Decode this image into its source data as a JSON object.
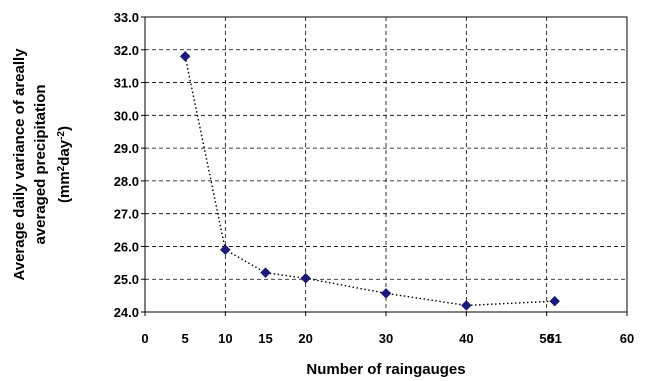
{
  "chart_data": {
    "type": "scatter",
    "xlabel": "Number of raingauges",
    "ylabel_lines": [
      "Average daily variance of areally",
      "averaged precipitation"
    ],
    "ylabel_unit": {
      "open": "(mm",
      "exp1": "2",
      "mid": "day",
      "exp2": "-2",
      "close": ")"
    },
    "xlim": [
      0,
      60
    ],
    "ylim": [
      24.0,
      33.0
    ],
    "x_ticks": [
      0,
      10,
      20,
      30,
      40,
      50,
      60
    ],
    "x_tick_labels": [
      "0",
      "10",
      "20",
      "30",
      "40",
      "50",
      "60"
    ],
    "y_ticks": [
      24.0,
      25.0,
      26.0,
      27.0,
      28.0,
      29.0,
      30.0,
      31.0,
      32.0,
      33.0
    ],
    "y_tick_labels": [
      "24.0",
      "25.0",
      "26.0",
      "27.0",
      "28.0",
      "29.0",
      "30.0",
      "31.0",
      "32.0",
      "33.0"
    ],
    "extra_x_labels": [
      {
        "x": 5,
        "text": "5"
      },
      {
        "x": 15,
        "text": "15"
      },
      {
        "x": 51,
        "text": "51"
      }
    ],
    "series": [
      {
        "x": [
          5,
          10,
          15,
          20,
          30,
          40,
          51
        ],
        "y": [
          31.8,
          25.9,
          25.2,
          25.03,
          24.57,
          24.2,
          24.33
        ],
        "marker": "diamond",
        "marker_color": "#1a1a7a",
        "line": "dotted",
        "line_color": "#000000"
      }
    ],
    "grid": true,
    "grid_style": "dashed"
  }
}
